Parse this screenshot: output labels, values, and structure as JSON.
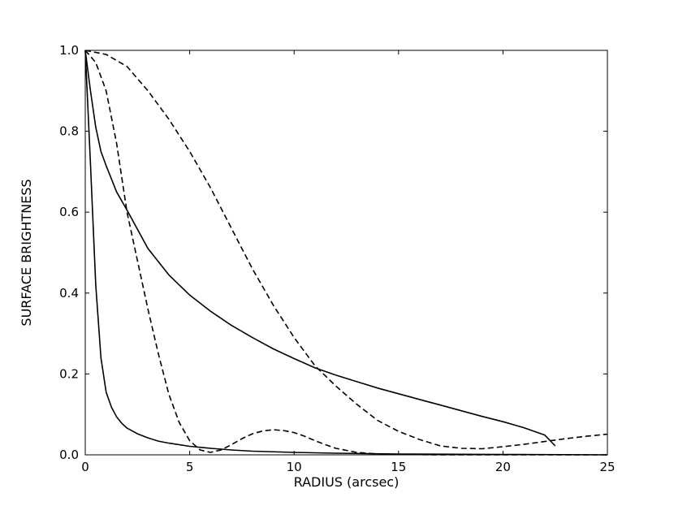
{
  "chart_data": {
    "type": "line",
    "title": "",
    "xlabel": "RADIUS (arcsec)",
    "ylabel": "SURFACE BRIGHTNESS",
    "xlim": [
      0,
      25
    ],
    "ylim": [
      0,
      1.0
    ],
    "xticks": [
      0,
      5,
      10,
      15,
      20,
      25
    ],
    "xtick_labels": [
      "0",
      "5",
      "10",
      "15",
      "20",
      "25"
    ],
    "yticks": [
      0,
      0.2,
      0.4,
      0.6,
      0.8,
      1.0
    ],
    "ytick_labels": [
      "0.0",
      "0.2",
      "0.4",
      "0.6",
      "0.8",
      "1.0"
    ],
    "grid": false,
    "legend": false,
    "series": [
      {
        "style": "solid",
        "color": "#000000",
        "x": [
          0,
          0.25,
          0.5,
          0.75,
          1.0,
          1.25,
          1.5,
          1.75,
          2.0,
          2.5,
          3.0,
          3.5,
          4.0,
          5.0,
          6.0,
          7.0,
          8.0,
          10.0,
          12.0,
          15.0,
          20.0,
          25.0
        ],
        "y": [
          1.0,
          0.72,
          0.42,
          0.24,
          0.155,
          0.118,
          0.094,
          0.078,
          0.066,
          0.052,
          0.042,
          0.034,
          0.029,
          0.021,
          0.016,
          0.012,
          0.009,
          0.006,
          0.004,
          0.002,
          0.001,
          0.0
        ]
      },
      {
        "style": "solid",
        "color": "#000000",
        "x": [
          0,
          0.25,
          0.5,
          0.75,
          1.0,
          1.5,
          2.0,
          3.0,
          4.0,
          5.0,
          6.0,
          7.0,
          8.0,
          9.0,
          10.0,
          11.0,
          12.0,
          13.0,
          14.0,
          15.0,
          16.0,
          17.0,
          18.0,
          19.0,
          20.0,
          21.0,
          22.0,
          22.5
        ],
        "y": [
          1.0,
          0.9,
          0.81,
          0.75,
          0.715,
          0.65,
          0.605,
          0.51,
          0.445,
          0.395,
          0.355,
          0.32,
          0.29,
          0.262,
          0.238,
          0.215,
          0.197,
          0.181,
          0.165,
          0.151,
          0.137,
          0.123,
          0.109,
          0.095,
          0.082,
          0.067,
          0.049,
          0.022
        ]
      },
      {
        "style": "dashed",
        "color": "#000000",
        "x": [
          0,
          0.5,
          1.0,
          1.5,
          2.0,
          2.5,
          3.0,
          3.5,
          4.0,
          4.5,
          5.0,
          5.5,
          6.0,
          6.5,
          7.0,
          7.5,
          8.0,
          8.5,
          9.0,
          9.5,
          10.0,
          10.5,
          11.0,
          11.5,
          12.0,
          13.0,
          14.0,
          15.0,
          17.0,
          20.0,
          25.0
        ],
        "y": [
          1.0,
          0.97,
          0.9,
          0.77,
          0.6,
          0.48,
          0.36,
          0.25,
          0.15,
          0.08,
          0.035,
          0.012,
          0.006,
          0.012,
          0.025,
          0.04,
          0.052,
          0.059,
          0.062,
          0.06,
          0.055,
          0.046,
          0.035,
          0.025,
          0.016,
          0.006,
          0.002,
          0.001,
          0.0,
          0.0,
          0.0
        ]
      },
      {
        "style": "dashed",
        "color": "#000000",
        "x": [
          0,
          1.0,
          2.0,
          3.0,
          4.0,
          5.0,
          6.0,
          7.0,
          8.0,
          9.0,
          10.0,
          11.0,
          12.0,
          13.0,
          14.0,
          15.0,
          16.0,
          17.0,
          18.0,
          19.0,
          20.0,
          21.0,
          22.0,
          23.0,
          24.0,
          25.0
        ],
        "y": [
          1.0,
          0.99,
          0.96,
          0.9,
          0.83,
          0.75,
          0.66,
          0.56,
          0.46,
          0.37,
          0.29,
          0.22,
          0.17,
          0.125,
          0.085,
          0.058,
          0.038,
          0.022,
          0.016,
          0.015,
          0.02,
          0.026,
          0.033,
          0.04,
          0.046,
          0.051
        ]
      }
    ]
  }
}
